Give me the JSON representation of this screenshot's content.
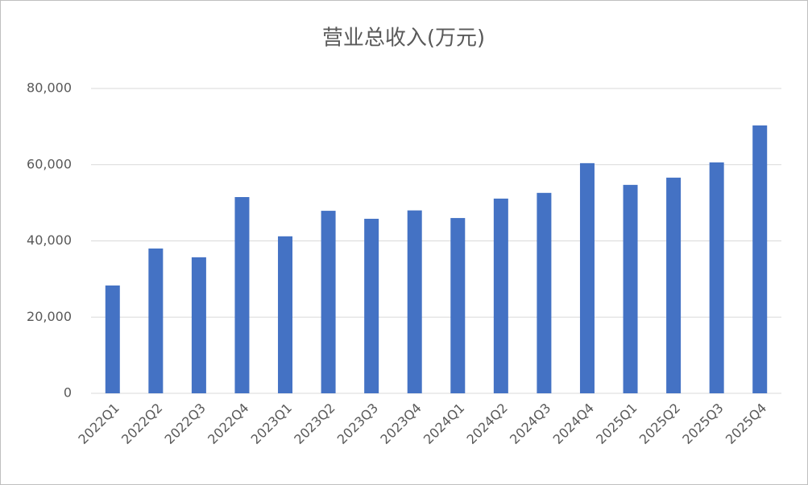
{
  "chart_data": {
    "type": "bar",
    "title": "营业总收入(万元)",
    "categories": [
      "2022Q1",
      "2022Q2",
      "2022Q3",
      "2022Q4",
      "2023Q1",
      "2023Q2",
      "2023Q3",
      "2023Q4",
      "2024Q1",
      "2024Q2",
      "2024Q3",
      "2024Q4",
      "2025Q1",
      "2025Q2",
      "2025Q3",
      "2025Q4"
    ],
    "values": [
      28300,
      38000,
      35700,
      51500,
      41200,
      47900,
      45800,
      48000,
      46000,
      51100,
      52600,
      60400,
      54700,
      56600,
      60600,
      70300
    ],
    "color": "#4472c4",
    "ylim": [
      0,
      80000
    ],
    "yticks": [
      0,
      {
        "value": 20000,
        "label": "20,000"
      },
      {
        "value": 40000,
        "label": "40,000"
      },
      {
        "value": 60000,
        "label": "60,000"
      },
      {
        "value": 80000,
        "label": "80,000"
      }
    ],
    "grid": true
  }
}
